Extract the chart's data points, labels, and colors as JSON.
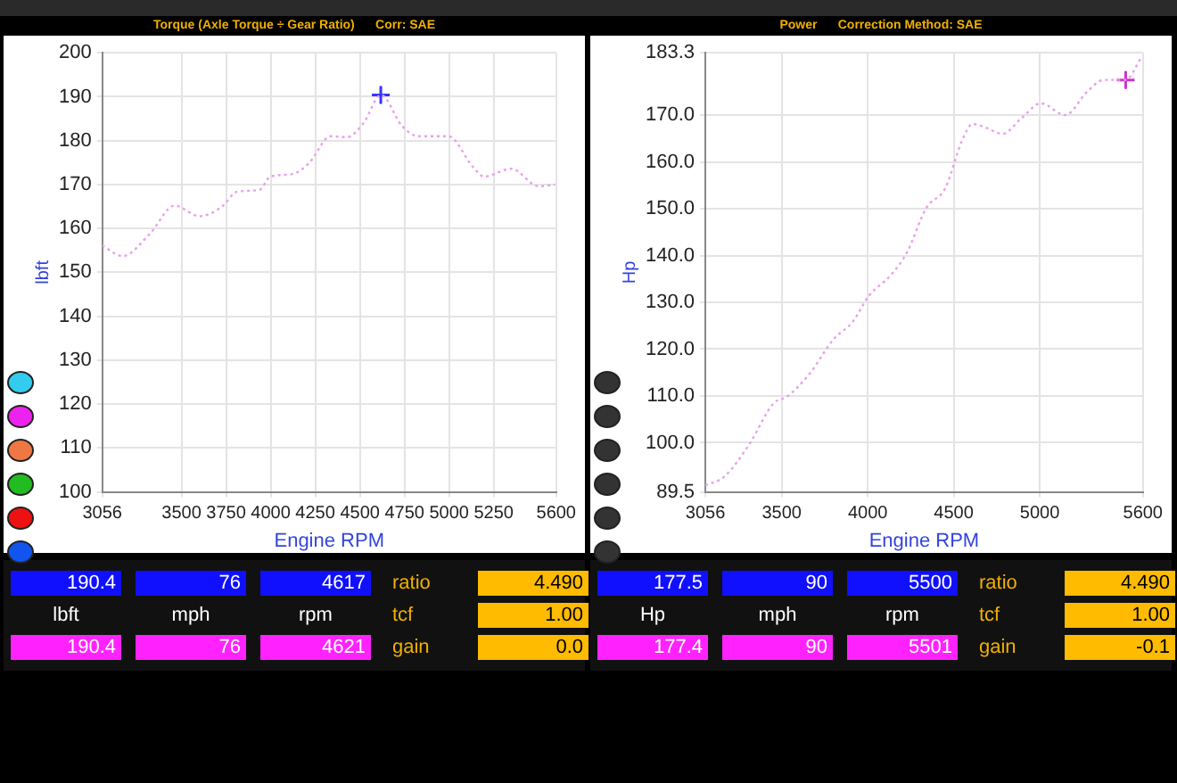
{
  "chart_data": [
    {
      "type": "line",
      "title": "Torque (Axle Torque ÷ Gear Ratio)      Corr: SAE",
      "xlabel": "Engine RPM",
      "ylabel": "lbft",
      "xlim": [
        3056,
        5600
      ],
      "xticks": [
        3056,
        3500,
        3750,
        4000,
        4250,
        4500,
        4750,
        5000,
        5250,
        5600
      ],
      "ylim": [
        100,
        200
      ],
      "yticks": [
        100,
        110,
        120,
        130,
        140,
        150,
        160,
        170,
        180,
        190,
        200
      ],
      "grid": true,
      "legend": false,
      "series": [
        {
          "color": "#e8a0e8",
          "line_style": "dotted",
          "marker": "none",
          "x": [
            3056,
            3170,
            3323,
            3461,
            3600,
            3722,
            3814,
            3937,
            3998,
            4121,
            4213,
            4336,
            4428,
            4520,
            4618,
            4735,
            4827,
            4996,
            5134,
            5195,
            5349,
            5502,
            5594
          ],
          "values": [
            156.1,
            153.7,
            158.8,
            165.2,
            162.8,
            164.8,
            168.4,
            168.8,
            171.8,
            172.4,
            174.8,
            181,
            180.8,
            184,
            190.4,
            183.4,
            181,
            181,
            174,
            171.8,
            173.6,
            169.6,
            170
          ]
        },
        {
          "type": "scatter",
          "color": "#3333ff",
          "marker": "cross",
          "x": [
            4617
          ],
          "values": [
            190.4
          ]
        }
      ],
      "annotations": [
        "190.4",
        "76",
        "4617",
        "ratio",
        "4.490",
        "lbft",
        "mph",
        "rpm",
        "tcf",
        "1.00",
        "190.4",
        "76",
        "4621",
        "gain",
        "0.0"
      ]
    },
    {
      "type": "line",
      "title": "Power      Correction Method: SAE",
      "xlabel": "Engine RPM",
      "ylabel": "Hp",
      "xlim": [
        3056,
        5600
      ],
      "xticks": [
        3056,
        3500,
        4000,
        4500,
        5000,
        5600
      ],
      "ylim": [
        89.5,
        183.3
      ],
      "yticks": [
        89.5,
        {
          "value": 100,
          "label": "100.0"
        },
        {
          "value": 110,
          "label": "110.0"
        },
        {
          "value": 120,
          "label": "120.0"
        },
        {
          "value": 130,
          "label": "130.0"
        },
        {
          "value": 140,
          "label": "140.0"
        },
        {
          "value": 150,
          "label": "150.0"
        },
        {
          "value": 160,
          "label": "160.0"
        },
        {
          "value": 170,
          "label": "170.0"
        },
        183.3
      ],
      "grid": true,
      "legend": false,
      "series": [
        {
          "color": "#e8a0e8",
          "line_style": "dotted",
          "marker": "none",
          "x": [
            3056,
            3167,
            3310,
            3452,
            3532,
            3659,
            3801,
            3912,
            4007,
            4134,
            4229,
            4340,
            4451,
            4547,
            4610,
            4674,
            4785,
            4896,
            5007,
            5149,
            5276,
            5372,
            5499,
            5594
          ],
          "values": [
            90.9,
            92.8,
            99.6,
            108.4,
            109.9,
            114.6,
            122.1,
            125.8,
            131.4,
            135.8,
            140.7,
            150.1,
            154.4,
            164.4,
            168.1,
            167.5,
            166,
            169.4,
            172.5,
            170,
            175,
            177.5,
            177.5,
            182.5
          ]
        },
        {
          "type": "scatter",
          "color": "#cc33cc",
          "marker": "cross",
          "x": [
            5500
          ],
          "values": [
            177.5
          ]
        }
      ],
      "annotations": [
        "177.5",
        "90",
        "5500",
        "ratio",
        "4.490",
        "Hp",
        "mph",
        "rpm",
        "tcf",
        "1.00",
        "177.4",
        "90",
        "5501",
        "gain",
        "-0.1"
      ]
    }
  ]
}
